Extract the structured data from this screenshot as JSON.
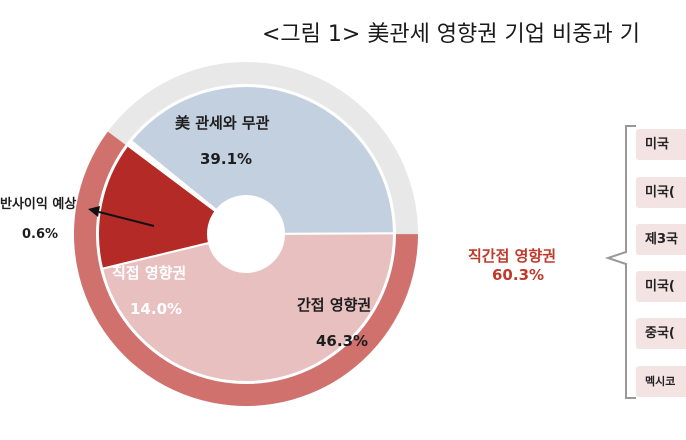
{
  "title": "<그림 1> 美관세 영향권 기업 비중과 기",
  "colors": {
    "no_relation": "#c3d0df",
    "indirect": "#e8c0c0",
    "direct": "#b42a26",
    "outer_ring": "#d0716e",
    "grey_ring": "#e8e8e8",
    "bracket": "#999999",
    "highlight_text": "#c0392b"
  },
  "chart_data": {
    "type": "pie",
    "title": "美관세 영향권 기업 비중",
    "slices": [
      {
        "name": "美 관세와 무관",
        "value": 39.1,
        "label": "39.1%",
        "color": "#c3d0df"
      },
      {
        "name": "간접 영향권",
        "value": 46.3,
        "label": "46.3%",
        "color": "#e8c0c0"
      },
      {
        "name": "직접 영향권",
        "value": 14.0,
        "label": "14.0%",
        "color": "#b42a26"
      },
      {
        "name": "반사이익 예상",
        "value": 0.6,
        "label": "0.6%",
        "color": "#ffffff"
      }
    ],
    "outer_group": {
      "name": "직간접 영향권",
      "value": 60.3,
      "label": "60.3%"
    }
  },
  "labels": {
    "no_relation_name": "美 관세와 무관",
    "no_relation_value": "39.1%",
    "indirect_name": "간접 영향권",
    "indirect_value": "46.3%",
    "direct_name": "직접 영향권",
    "direct_value": "14.0%",
    "reflect_name": "반사이익 예상",
    "reflect_value": "0.6%",
    "group_name": "직간접 영향권",
    "group_value": "60.3%"
  },
  "legend_items": [
    "미국",
    "미국(",
    "제3국",
    "미국(",
    "중국(",
    "멕시코"
  ]
}
